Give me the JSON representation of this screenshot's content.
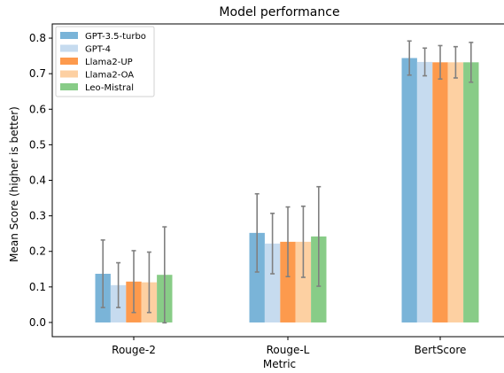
{
  "chart_data": {
    "type": "bar",
    "title": "Model performance",
    "xlabel": "Metric",
    "ylabel": "Mean Score (higher is better)",
    "ylim": [
      -0.04,
      0.84
    ],
    "yticks": [
      0.0,
      0.1,
      0.2,
      0.3,
      0.4,
      0.5,
      0.6,
      0.7,
      0.8
    ],
    "ytick_labels": [
      "0.0",
      "0.1",
      "0.2",
      "0.3",
      "0.4",
      "0.5",
      "0.6",
      "0.7",
      "0.8"
    ],
    "categories": [
      "Rouge-2",
      "Rouge-L",
      "BertScore"
    ],
    "legend_position": "top-left",
    "grid": false,
    "error_bar_color": "#808080",
    "series": [
      {
        "name": "GPT-3.5-turbo",
        "color": "#7ab4d8",
        "values": [
          0.137,
          0.252,
          0.744
        ],
        "errors": [
          0.095,
          0.11,
          0.048
        ]
      },
      {
        "name": "GPT-4",
        "color": "#c6dbef",
        "values": [
          0.105,
          0.222,
          0.733
        ],
        "errors": [
          0.063,
          0.085,
          0.039
        ]
      },
      {
        "name": "Llama2-UP",
        "color": "#fd9a4d",
        "values": [
          0.115,
          0.227,
          0.732
        ],
        "errors": [
          0.087,
          0.098,
          0.047
        ]
      },
      {
        "name": "Llama2-OA",
        "color": "#fdd0a2",
        "values": [
          0.113,
          0.227,
          0.732
        ],
        "errors": [
          0.085,
          0.1,
          0.044
        ]
      },
      {
        "name": "Leo-Mistral",
        "color": "#88cc87",
        "values": [
          0.134,
          0.242,
          0.732
        ],
        "errors": [
          0.135,
          0.14,
          0.056
        ]
      }
    ]
  }
}
